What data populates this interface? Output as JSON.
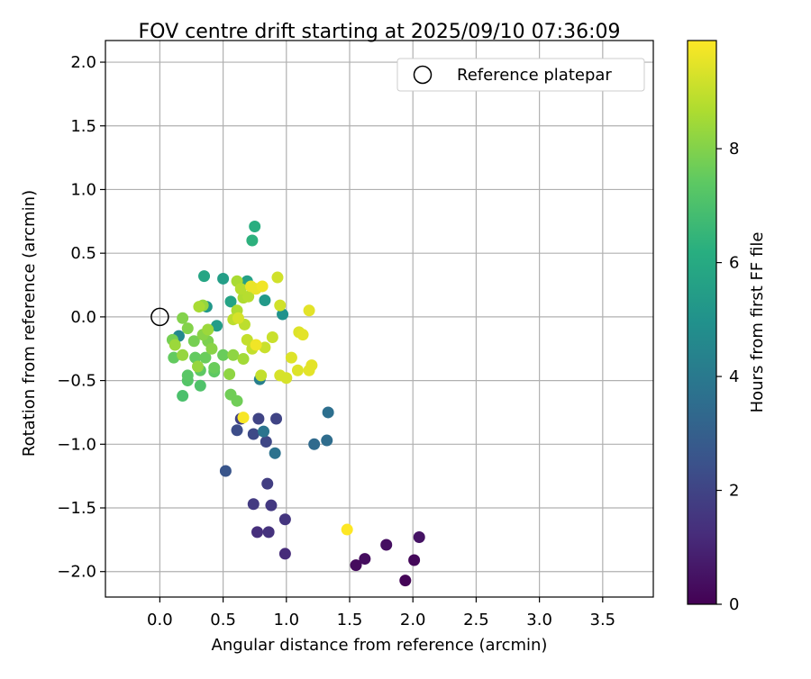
{
  "chart_data": {
    "type": "scatter",
    "title": "FOV centre drift starting at 2025/09/10 07:36:09",
    "xlabel": "Angular distance from reference (arcmin)",
    "ylabel": "Rotation from reference (arcmin)",
    "xlim": [
      -0.43,
      3.9
    ],
    "ylim": [
      -2.2,
      2.17
    ],
    "xticks": [
      "0.0",
      "0.5",
      "1.0",
      "1.5",
      "2.0",
      "2.5",
      "3.0",
      "3.5"
    ],
    "yticks": [
      "−2.0",
      "−1.5",
      "−1.0",
      "−0.5",
      "0.0",
      "0.5",
      "1.0",
      "1.5",
      "2.0"
    ],
    "grid": true,
    "legend": {
      "position": "top-right",
      "entries": [
        {
          "label": "Reference platepar",
          "marker": "open-circle"
        }
      ]
    },
    "reference_point": {
      "x": 0.0,
      "y": 0.0
    },
    "colorbar": {
      "label": "Hours from first FF file",
      "range": [
        0,
        9.9
      ],
      "ticks": [
        "0",
        "2",
        "4",
        "6",
        "8"
      ],
      "colormap": "viridis"
    },
    "series": [
      {
        "columns": [
          "x",
          "y",
          "hours"
        ],
        "points": [
          [
            1.94,
            -2.07,
            0.1
          ],
          [
            2.01,
            -1.91,
            0.2
          ],
          [
            1.55,
            -1.95,
            0.3
          ],
          [
            1.62,
            -1.9,
            0.35
          ],
          [
            1.79,
            -1.79,
            0.4
          ],
          [
            2.05,
            -1.73,
            0.5
          ],
          [
            0.99,
            -1.86,
            1.2
          ],
          [
            0.77,
            -1.69,
            1.3
          ],
          [
            0.86,
            -1.69,
            1.4
          ],
          [
            0.99,
            -1.59,
            1.5
          ],
          [
            0.88,
            -1.48,
            1.6
          ],
          [
            0.74,
            -1.47,
            1.7
          ],
          [
            0.85,
            -1.31,
            1.8
          ],
          [
            0.64,
            -0.8,
            1.9
          ],
          [
            0.78,
            -0.8,
            2.0
          ],
          [
            0.92,
            -0.8,
            2.0
          ],
          [
            0.84,
            -0.98,
            2.1
          ],
          [
            0.74,
            -0.92,
            2.2
          ],
          [
            0.61,
            -0.89,
            2.3
          ],
          [
            0.52,
            -1.21,
            2.6
          ],
          [
            1.22,
            -1.0,
            3.4
          ],
          [
            1.32,
            -0.97,
            3.5
          ],
          [
            1.33,
            -0.75,
            3.6
          ],
          [
            0.91,
            -1.07,
            3.7
          ],
          [
            0.82,
            -0.9,
            3.8
          ],
          [
            0.79,
            -0.49,
            4.2
          ],
          [
            0.15,
            -0.15,
            4.6
          ],
          [
            0.97,
            0.02,
            5.0
          ],
          [
            0.37,
            0.08,
            5.2
          ],
          [
            0.83,
            0.13,
            5.3
          ],
          [
            0.45,
            -0.07,
            5.4
          ],
          [
            0.5,
            0.3,
            5.5
          ],
          [
            0.69,
            0.28,
            5.6
          ],
          [
            0.56,
            0.12,
            5.7
          ],
          [
            0.35,
            0.32,
            5.8
          ],
          [
            0.75,
            0.71,
            6.2
          ],
          [
            0.73,
            0.6,
            6.3
          ],
          [
            0.18,
            -0.62,
            7.0
          ],
          [
            0.32,
            -0.54,
            7.1
          ],
          [
            0.22,
            -0.5,
            7.2
          ],
          [
            0.22,
            -0.46,
            7.3
          ],
          [
            0.32,
            -0.42,
            7.4
          ],
          [
            0.43,
            -0.43,
            7.4
          ],
          [
            0.11,
            -0.32,
            7.5
          ],
          [
            0.28,
            -0.32,
            7.5
          ],
          [
            0.36,
            -0.32,
            7.6
          ],
          [
            0.43,
            -0.4,
            7.6
          ],
          [
            0.5,
            -0.3,
            7.6
          ],
          [
            0.56,
            -0.61,
            7.7
          ],
          [
            0.61,
            -0.66,
            7.7
          ],
          [
            0.1,
            -0.18,
            7.8
          ],
          [
            0.27,
            -0.19,
            7.8
          ],
          [
            0.38,
            -0.19,
            7.9
          ],
          [
            0.18,
            -0.01,
            8.0
          ],
          [
            0.22,
            -0.09,
            8.0
          ],
          [
            0.34,
            -0.14,
            8.1
          ],
          [
            0.41,
            -0.25,
            8.1
          ],
          [
            0.55,
            -0.45,
            8.2
          ],
          [
            0.58,
            -0.3,
            8.2
          ],
          [
            0.34,
            0.09,
            8.3
          ],
          [
            0.3,
            -0.39,
            8.3
          ],
          [
            0.18,
            -0.3,
            8.3
          ],
          [
            0.12,
            -0.22,
            8.4
          ],
          [
            0.38,
            -0.1,
            8.4
          ],
          [
            0.66,
            -0.33,
            8.5
          ],
          [
            0.31,
            0.08,
            8.6
          ],
          [
            0.61,
            0.28,
            8.6
          ],
          [
            0.61,
            0.05,
            8.7
          ],
          [
            0.66,
            0.15,
            8.7
          ],
          [
            0.7,
            0.16,
            8.8
          ],
          [
            0.64,
            0.22,
            8.8
          ],
          [
            0.67,
            -0.06,
            8.9
          ],
          [
            0.58,
            -0.02,
            8.9
          ],
          [
            0.69,
            -0.18,
            9.0
          ],
          [
            0.73,
            -0.25,
            9.0
          ],
          [
            0.8,
            -0.46,
            9.0
          ],
          [
            0.83,
            -0.24,
            9.1
          ],
          [
            0.89,
            -0.16,
            9.1
          ],
          [
            0.93,
            0.31,
            9.2
          ],
          [
            0.95,
            0.09,
            9.2
          ],
          [
            0.62,
            -0.01,
            9.3
          ],
          [
            0.95,
            -0.46,
            9.3
          ],
          [
            1.0,
            -0.48,
            9.3
          ],
          [
            1.04,
            -0.32,
            9.4
          ],
          [
            1.09,
            -0.42,
            9.4
          ],
          [
            1.1,
            -0.12,
            9.4
          ],
          [
            1.13,
            -0.14,
            9.5
          ],
          [
            1.18,
            0.05,
            9.5
          ],
          [
            1.18,
            -0.42,
            9.5
          ],
          [
            1.2,
            -0.38,
            9.5
          ],
          [
            0.72,
            0.24,
            9.6
          ],
          [
            0.76,
            0.22,
            9.6
          ],
          [
            0.81,
            0.24,
            9.7
          ],
          [
            0.76,
            -0.22,
            9.7
          ],
          [
            0.66,
            -0.79,
            9.8
          ],
          [
            1.48,
            -1.67,
            9.9
          ]
        ]
      }
    ],
    "colors": {
      "axes": "#000000",
      "grid": "#b0b0b0",
      "reference_marker": "#000000",
      "legend_border": "#cccccc"
    }
  }
}
